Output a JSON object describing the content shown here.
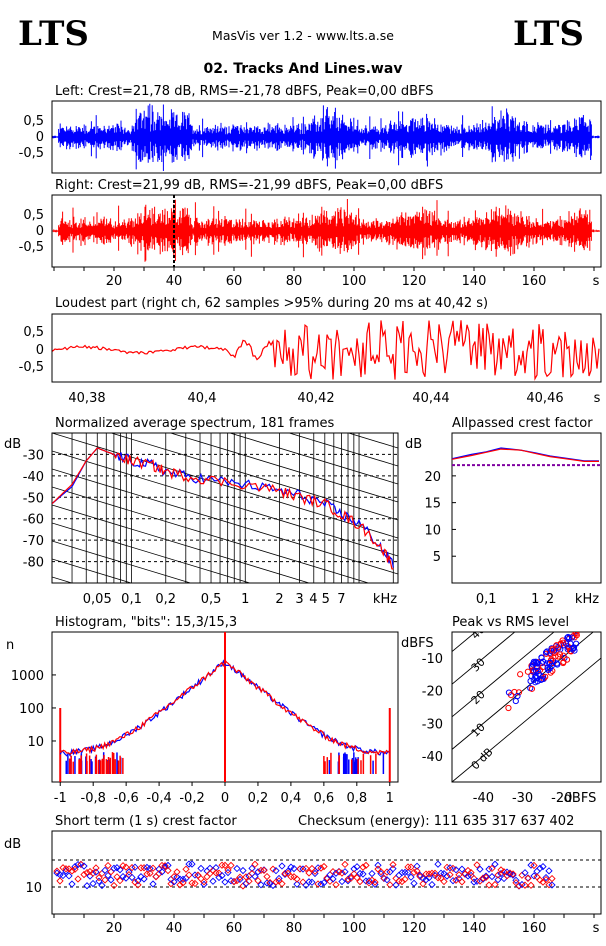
{
  "app": {
    "logo_left": "LTS",
    "logo_right": "LTS",
    "title": "MasVis ver 1.2 - www.lts.a.se",
    "file": "02. Tracks And Lines.wav"
  },
  "colors": {
    "left": "#0000ff",
    "right": "#ff0000",
    "mix": "#7f00a0"
  },
  "panels": {
    "left": {
      "label": "Left: Crest=21,78 dB, RMS=-21,78 dBFS, Peak=0,00 dBFS",
      "yticks": [
        "0,5",
        "0",
        "-0,5"
      ]
    },
    "right": {
      "label": "Right: Crest=21,99 dB, RMS=-21,99 dBFS, Peak=0,00 dBFS",
      "yticks": [
        "0,5",
        "0",
        "-0,5"
      ],
      "marker_s": 40.42
    },
    "time_axis": {
      "ticks": [
        "20",
        "40",
        "60",
        "80",
        "100",
        "120",
        "140",
        "160"
      ],
      "unit": "s"
    },
    "loudest": {
      "label": "Loudest part (right ch, 62 samples >95% during 20 ms at 40,42 s)",
      "yticks": [
        "0,5",
        "0",
        "-0,5"
      ],
      "xticks": [
        "40,38",
        "40,4",
        "40,42",
        "40,44",
        "40,46"
      ],
      "unit": "s"
    },
    "spectrum": {
      "label": "Normalized average spectrum, 181 frames",
      "yunit": "dB",
      "yticks": [
        "-30",
        "-40",
        "-50",
        "-60",
        "-70",
        "-80"
      ],
      "xticks": [
        "0,05",
        "0,1",
        "0,2",
        "0,5",
        "1",
        "2",
        "3",
        "4 5",
        "7"
      ],
      "xunit": "kHz"
    },
    "crest": {
      "label": "Allpassed crest factor",
      "yunit": "dB",
      "yticks": [
        "20",
        "15",
        "10",
        "5"
      ],
      "xticks": [
        "0,1",
        "1",
        "2"
      ],
      "xunit": "kHz"
    },
    "histogram": {
      "label": "Histogram, \"bits\": 15,3/15,3",
      "yunit": "n",
      "yticks": [
        "1000",
        "100",
        "10"
      ],
      "xticks": [
        "-1",
        "-0,8",
        "-0,6",
        "-0,4",
        "-0,2",
        "0",
        "0,2",
        "0,4",
        "0,6",
        "0,8",
        "1"
      ]
    },
    "peak_rms": {
      "label": "Peak vs RMS level",
      "yunit": "dBFS",
      "yticks": [
        "-10",
        "-20",
        "-30",
        "-40"
      ],
      "xticks": [
        "-40",
        "-30",
        "-20"
      ],
      "xunit": "dBFS",
      "diag_labels": [
        "40",
        "30",
        "20",
        "10",
        "0 dB"
      ]
    },
    "short_crest": {
      "label": "Short term (1 s) crest factor",
      "checksum": "Checksum (energy):   111 635 317 637 402",
      "yunit": "dB",
      "yticks": [
        "10"
      ],
      "xticks": [
        "20",
        "40",
        "60",
        "80",
        "100",
        "120",
        "140",
        "160"
      ],
      "unit": "s"
    }
  },
  "chart_data": [
    {
      "type": "line",
      "title": "Left",
      "x_range_s": [
        0,
        167
      ],
      "ylim": [
        -1,
        1
      ],
      "crest_db": 21.78,
      "rms_dbfs": -21.78,
      "peak_dbfs": 0.0
    },
    {
      "type": "line",
      "title": "Right",
      "x_range_s": [
        0,
        167
      ],
      "ylim": [
        -1,
        1
      ],
      "crest_db": 21.99,
      "rms_dbfs": -21.99,
      "peak_dbfs": 0.0,
      "marker_s": 40.42
    },
    {
      "type": "line",
      "title": "Loudest part",
      "x_range_s": [
        40.37,
        40.475
      ],
      "ylim": [
        -1,
        1
      ]
    },
    {
      "type": "line",
      "title": "Normalized average spectrum",
      "xscale": "log",
      "ylim_db": [
        -90,
        -20
      ],
      "series": [
        {
          "name": "Left",
          "x_khz": [
            0.02,
            0.03,
            0.04,
            0.05,
            0.07,
            0.1,
            0.15,
            0.2,
            0.3,
            0.5,
            1,
            2,
            3,
            5,
            7,
            10,
            15,
            20
          ],
          "y_db": [
            -53,
            -45,
            -33,
            -27,
            -30,
            -33,
            -35,
            -38,
            -40,
            -42,
            -44,
            -47,
            -49,
            -53,
            -58,
            -62,
            -72,
            -82
          ]
        },
        {
          "name": "Right",
          "x_khz": [
            0.02,
            0.03,
            0.04,
            0.05,
            0.07,
            0.1,
            0.15,
            0.2,
            0.3,
            0.5,
            1,
            2,
            3,
            5,
            7,
            10,
            15,
            20
          ],
          "y_db": [
            -53,
            -44,
            -33,
            -27,
            -30,
            -33,
            -35,
            -38,
            -40,
            -42,
            -44,
            -47,
            -50,
            -53,
            -58,
            -63,
            -72,
            -82
          ]
        }
      ]
    },
    {
      "type": "line",
      "title": "Allpassed crest factor",
      "xscale": "log",
      "ylim_db": [
        0,
        28
      ],
      "series": [
        {
          "name": "Left",
          "x_khz": [
            0.02,
            0.05,
            0.1,
            0.2,
            0.5,
            1,
            2,
            5,
            10,
            20
          ],
          "y_db": [
            23.2,
            24,
            24.5,
            25.2,
            24.8,
            24.3,
            23.7,
            23.2,
            22.8,
            22.8
          ]
        },
        {
          "name": "Right",
          "x_khz": [
            0.02,
            0.05,
            0.1,
            0.2,
            0.5,
            1,
            2,
            5,
            10,
            20
          ],
          "y_db": [
            23.1,
            23.8,
            24.4,
            25,
            24.8,
            24.2,
            23.6,
            23.1,
            22.7,
            22.7
          ]
        }
      ],
      "reference_db": 22
    },
    {
      "type": "line",
      "title": "Histogram",
      "xlim": [
        -1.05,
        1.05
      ],
      "yscale": "log",
      "x": [
        -1,
        -0.9,
        -0.8,
        -0.6,
        -0.4,
        -0.2,
        -0.1,
        0,
        0.1,
        0.2,
        0.4,
        0.6,
        0.8,
        0.9,
        1
      ],
      "y": [
        100,
        4,
        5,
        10,
        35,
        130,
        400,
        2500,
        400,
        130,
        35,
        10,
        5,
        4,
        100
      ]
    },
    {
      "type": "scatter",
      "title": "Peak vs RMS level",
      "xlim": [
        -48,
        -10
      ],
      "ylim": [
        -48,
        -2
      ]
    },
    {
      "type": "scatter",
      "title": "Short term (1 s) crest factor",
      "x_range_s": [
        0,
        167
      ],
      "reference_db": [
        10,
        20
      ]
    }
  ]
}
